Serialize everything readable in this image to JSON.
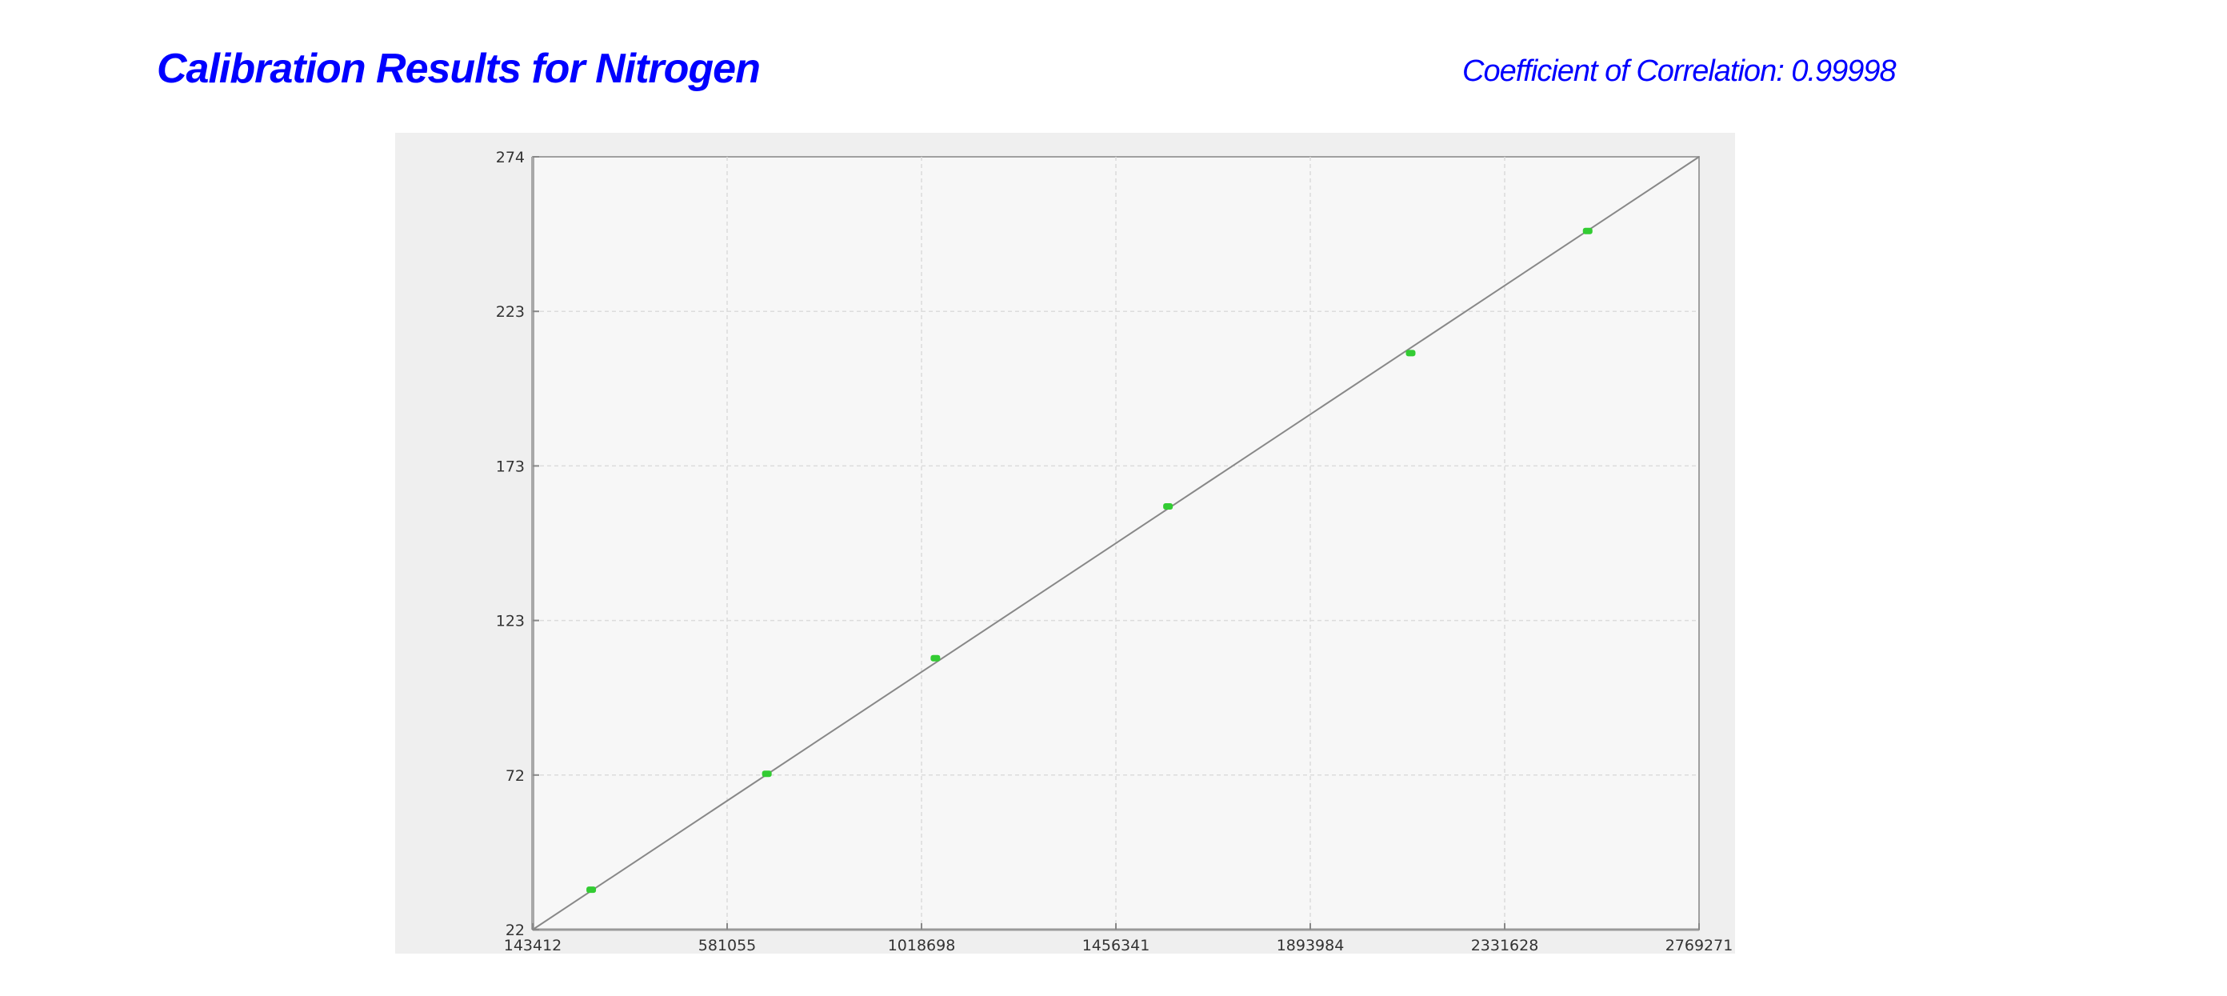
{
  "header": {
    "title": "Calibration Results for Nitrogen",
    "coefficient": "Coefficient of Correlation: 0.99998"
  },
  "chart_data": {
    "type": "scatter",
    "title": "",
    "xlabel": "",
    "ylabel": "",
    "xlim": [
      143412,
      2769271
    ],
    "ylim": [
      22,
      274
    ],
    "x_ticks": [
      "143412",
      "581055",
      "1018698",
      "1456341",
      "1893984",
      "2331628",
      "2769271"
    ],
    "y_ticks": [
      "22",
      "72",
      "123",
      "173",
      "223",
      "274"
    ],
    "grid": true,
    "points": [
      {
        "x": 275000,
        "y": 35
      },
      {
        "x": 670500,
        "y": 72.8
      },
      {
        "x": 1050000,
        "y": 110.5
      },
      {
        "x": 1573600,
        "y": 160
      },
      {
        "x": 2120000,
        "y": 210
      },
      {
        "x": 2518500,
        "y": 249.8
      }
    ],
    "fit_line": {
      "from": [
        143412,
        22
      ],
      "to": [
        2769271,
        274
      ]
    },
    "colors": {
      "points": "#33cc33",
      "line": "#888888",
      "title": "#0000ff",
      "plot_bg": "#f7f7f7",
      "panel_bg": "#efefef"
    }
  }
}
